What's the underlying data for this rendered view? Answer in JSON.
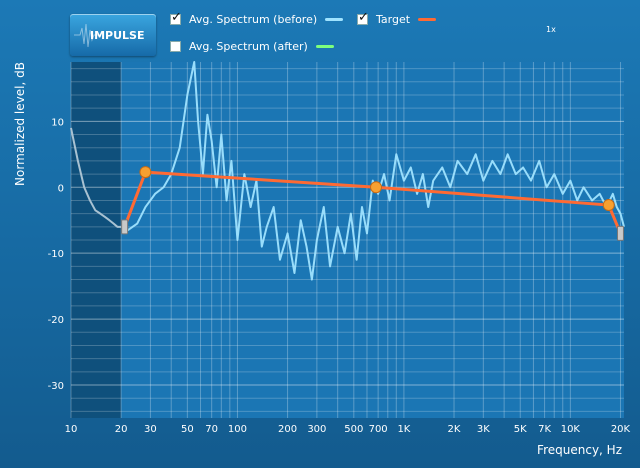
{
  "header": {
    "impulse_button": "IMPULSE",
    "zoom_label": "1x"
  },
  "legend": [
    {
      "label": "Avg. Spectrum (before)",
      "checked": true,
      "color": "#9fe3ff"
    },
    {
      "label": "Target",
      "checked": true,
      "color": "#ff6a33"
    },
    {
      "label": "Avg. Spectrum (after)",
      "checked": false,
      "color": "#7dff7d"
    }
  ],
  "chart_data": {
    "type": "line",
    "xlabel": "Frequency, Hz",
    "ylabel": "Normalized level, dB",
    "xscale": "log",
    "xlim": [
      10,
      21000
    ],
    "ylim": [
      -35,
      19
    ],
    "x_ticks": [
      {
        "value": 10,
        "label": "10"
      },
      {
        "value": 20,
        "label": "20"
      },
      {
        "value": 30,
        "label": "30"
      },
      {
        "value": 50,
        "label": "50"
      },
      {
        "value": 70,
        "label": "70"
      },
      {
        "value": 100,
        "label": "100"
      },
      {
        "value": 200,
        "label": "200"
      },
      {
        "value": 300,
        "label": "300"
      },
      {
        "value": 500,
        "label": "500"
      },
      {
        "value": 700,
        "label": "700"
      },
      {
        "value": 1000,
        "label": "1K"
      },
      {
        "value": 2000,
        "label": "2K"
      },
      {
        "value": 3000,
        "label": "3K"
      },
      {
        "value": 5000,
        "label": "5K"
      },
      {
        "value": 7000,
        "label": "7K"
      },
      {
        "value": 10000,
        "label": "10K"
      },
      {
        "value": 20000,
        "label": "20K"
      }
    ],
    "y_ticks": [
      {
        "value": 10,
        "label": "10"
      },
      {
        "value": 0,
        "label": "0"
      },
      {
        "value": -10,
        "label": "-10"
      },
      {
        "value": -20,
        "label": "-20"
      },
      {
        "value": -30,
        "label": "-30"
      }
    ],
    "excluded_below_hz": 20,
    "series": [
      {
        "name": "Avg. Spectrum (before)",
        "color": "#9fe3ff",
        "x": [
          10,
          11,
          12,
          13,
          14,
          15,
          16,
          17,
          18,
          19,
          20,
          22,
          25,
          28,
          32,
          36,
          40,
          45,
          50,
          55,
          58,
          62,
          66,
          70,
          75,
          80,
          86,
          92,
          100,
          110,
          120,
          130,
          140,
          150,
          165,
          180,
          200,
          220,
          240,
          260,
          280,
          300,
          330,
          360,
          400,
          440,
          480,
          520,
          560,
          600,
          650,
          700,
          760,
          820,
          900,
          1000,
          1100,
          1200,
          1300,
          1400,
          1500,
          1700,
          1900,
          2100,
          2400,
          2700,
          3000,
          3400,
          3800,
          4200,
          4700,
          5200,
          5800,
          6500,
          7200,
          8000,
          9000,
          10000,
          11000,
          12000,
          13500,
          15000,
          16500,
          18000,
          19000,
          20000,
          21000
        ],
        "y": [
          9,
          4,
          0,
          -2,
          -3.5,
          -4,
          -4.5,
          -5,
          -5.5,
          -6,
          -6,
          -6.5,
          -5.5,
          -3,
          -1,
          0,
          2,
          6,
          14,
          19,
          10,
          2,
          11,
          7,
          0,
          8,
          -2,
          4,
          -8,
          2,
          -3,
          1,
          -9,
          -6,
          -3,
          -11,
          -7,
          -13,
          -5,
          -9,
          -14,
          -8,
          -3,
          -12,
          -6,
          -10,
          -4,
          -11,
          -3,
          -7,
          1,
          -1,
          2,
          -2,
          5,
          1,
          3,
          -1,
          2,
          -3,
          1,
          3,
          0,
          4,
          2,
          5,
          1,
          4,
          2,
          5,
          2,
          3,
          1,
          4,
          0,
          2,
          -1,
          1,
          -2,
          0,
          -2,
          -1,
          -3,
          -1,
          -3,
          -4,
          -6
        ]
      },
      {
        "name": "Target",
        "color": "#ff6a33",
        "x": [
          21,
          28,
          680,
          17000,
          20000
        ],
        "y": [
          -6,
          2.3,
          0,
          -2.7,
          -7
        ],
        "handles": [
          {
            "x": 28,
            "y": 2.3
          },
          {
            "x": 680,
            "y": 0
          },
          {
            "x": 17000,
            "y": -2.7
          }
        ]
      }
    ]
  }
}
